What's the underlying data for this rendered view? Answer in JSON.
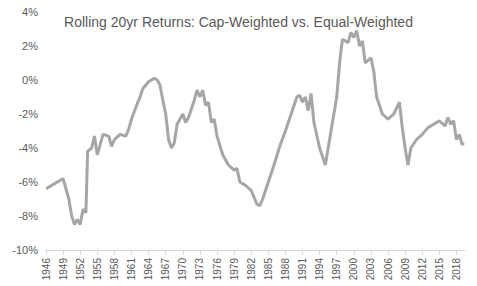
{
  "chart_data": {
    "type": "line",
    "title": "Rolling 20yr Returns: Cap-Weighted vs. Equal-Weighted",
    "color": "#a6a6a6",
    "grid": false,
    "x": [
      1946,
      1947,
      1948,
      1949,
      1950,
      1950.5,
      1951,
      1951.5,
      1952,
      1952.5,
      1953,
      1953.3,
      1954,
      1954.5,
      1955,
      1955.5,
      1956,
      1957,
      1957.5,
      1958,
      1959,
      1960,
      1960.5,
      1961,
      1962,
      1962.5,
      1963,
      1964,
      1965,
      1965.5,
      1966,
      1966.5,
      1967,
      1967.5,
      1968,
      1968.5,
      1969,
      1970,
      1970.5,
      1971,
      1972,
      1972.5,
      1973,
      1973.5,
      1974,
      1974.5,
      1975,
      1975.5,
      1976,
      1977,
      1978,
      1979,
      1979.5,
      1980,
      1981,
      1982,
      1983,
      1983.5,
      1984,
      1985,
      1986,
      1987,
      1988,
      1989,
      1990,
      1990.5,
      1991,
      1991.5,
      1992,
      1992.5,
      1993,
      1994,
      1995,
      1995.5,
      1996,
      1997,
      1997.5,
      1998,
      1999,
      1999.5,
      2000,
      2000.5,
      2001,
      2001.5,
      2002,
      2003,
      2003.5,
      2004,
      2005,
      2006,
      2007,
      2008,
      2008.5,
      2009,
      2009.5,
      2010,
      2011,
      2012,
      2013,
      2014,
      2015,
      2016,
      2016.5,
      2017,
      2017.5,
      2018,
      2018.5,
      2019,
      2019.3
    ],
    "values": [
      -6.4,
      -6.2,
      -6.0,
      -5.8,
      -7.0,
      -8.0,
      -8.5,
      -8.2,
      -8.5,
      -7.6,
      -7.8,
      -4.2,
      -4.0,
      -3.3,
      -4.4,
      -3.8,
      -3.2,
      -3.3,
      -3.9,
      -3.5,
      -3.2,
      -3.3,
      -2.9,
      -2.3,
      -1.4,
      -1.0,
      -0.5,
      -0.1,
      0.1,
      0.0,
      -0.3,
      -1.2,
      -2.0,
      -3.5,
      -4.0,
      -3.7,
      -2.6,
      -2.0,
      -2.5,
      -2.2,
      -1.2,
      -0.6,
      -1.0,
      -0.6,
      -1.5,
      -1.3,
      -2.5,
      -2.3,
      -3.3,
      -4.4,
      -5.0,
      -5.3,
      -5.2,
      -6.0,
      -6.2,
      -6.5,
      -7.3,
      -7.4,
      -7.0,
      -6.0,
      -5.0,
      -3.9,
      -3.0,
      -2.0,
      -1.0,
      -0.9,
      -1.3,
      -1.0,
      -1.8,
      -0.8,
      -2.5,
      -4.0,
      -5.0,
      -4.0,
      -3.0,
      -1.0,
      1.0,
      2.4,
      2.2,
      2.8,
      2.5,
      2.9,
      2.0,
      2.3,
      1.0,
      1.3,
      0.5,
      -1.0,
      -2.0,
      -2.3,
      -2.0,
      -1.3,
      -2.8,
      -4.0,
      -5.0,
      -4.0,
      -3.5,
      -3.2,
      -2.8,
      -2.6,
      -2.4,
      -2.7,
      -2.2,
      -2.6,
      -2.4,
      -3.5,
      -3.2,
      -3.8,
      -3.7
    ],
    "xlim": [
      1946,
      2019.5
    ],
    "xticks": [
      1946,
      1949,
      1952,
      1955,
      1958,
      1961,
      1964,
      1967,
      1970,
      1973,
      1976,
      1979,
      1982,
      1985,
      1988,
      1991,
      1994,
      1997,
      2000,
      2003,
      2006,
      2009,
      2012,
      2015,
      2018
    ],
    "ylim": [
      -10,
      4
    ],
    "yticks": [
      {
        "value": -10,
        "label": "-10%"
      },
      {
        "value": -8,
        "label": "-8%"
      },
      {
        "value": -6,
        "label": "-6%"
      },
      {
        "value": -4,
        "label": "-4%"
      },
      {
        "value": -2,
        "label": "-2%"
      },
      {
        "value": 0,
        "label": "0%"
      },
      {
        "value": 2,
        "label": "2%"
      },
      {
        "value": 4,
        "label": "4%"
      }
    ]
  }
}
